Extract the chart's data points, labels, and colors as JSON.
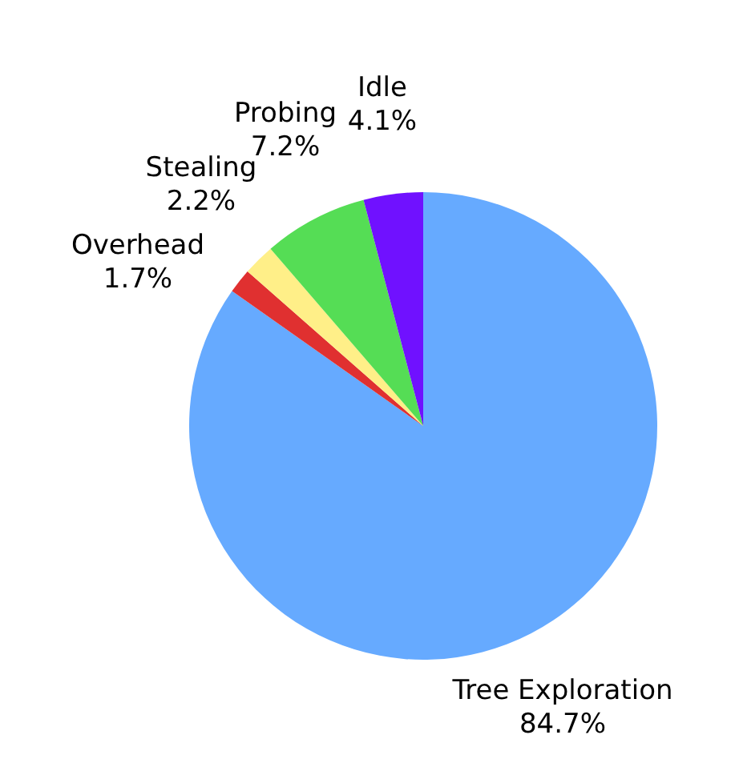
{
  "chart_data": {
    "type": "pie",
    "categories": [
      "Tree Exploration",
      "Overhead",
      "Stealing",
      "Probing",
      "Idle"
    ],
    "values": [
      84.7,
      1.7,
      2.2,
      7.2,
      4.1
    ],
    "value_labels": [
      "84.7%",
      "1.7%",
      "2.2%",
      "7.2%",
      "4.1%"
    ],
    "colors": [
      "#66aaff",
      "#e03030",
      "#ffef88",
      "#55dd55",
      "#7011ff"
    ],
    "legend": false
  }
}
